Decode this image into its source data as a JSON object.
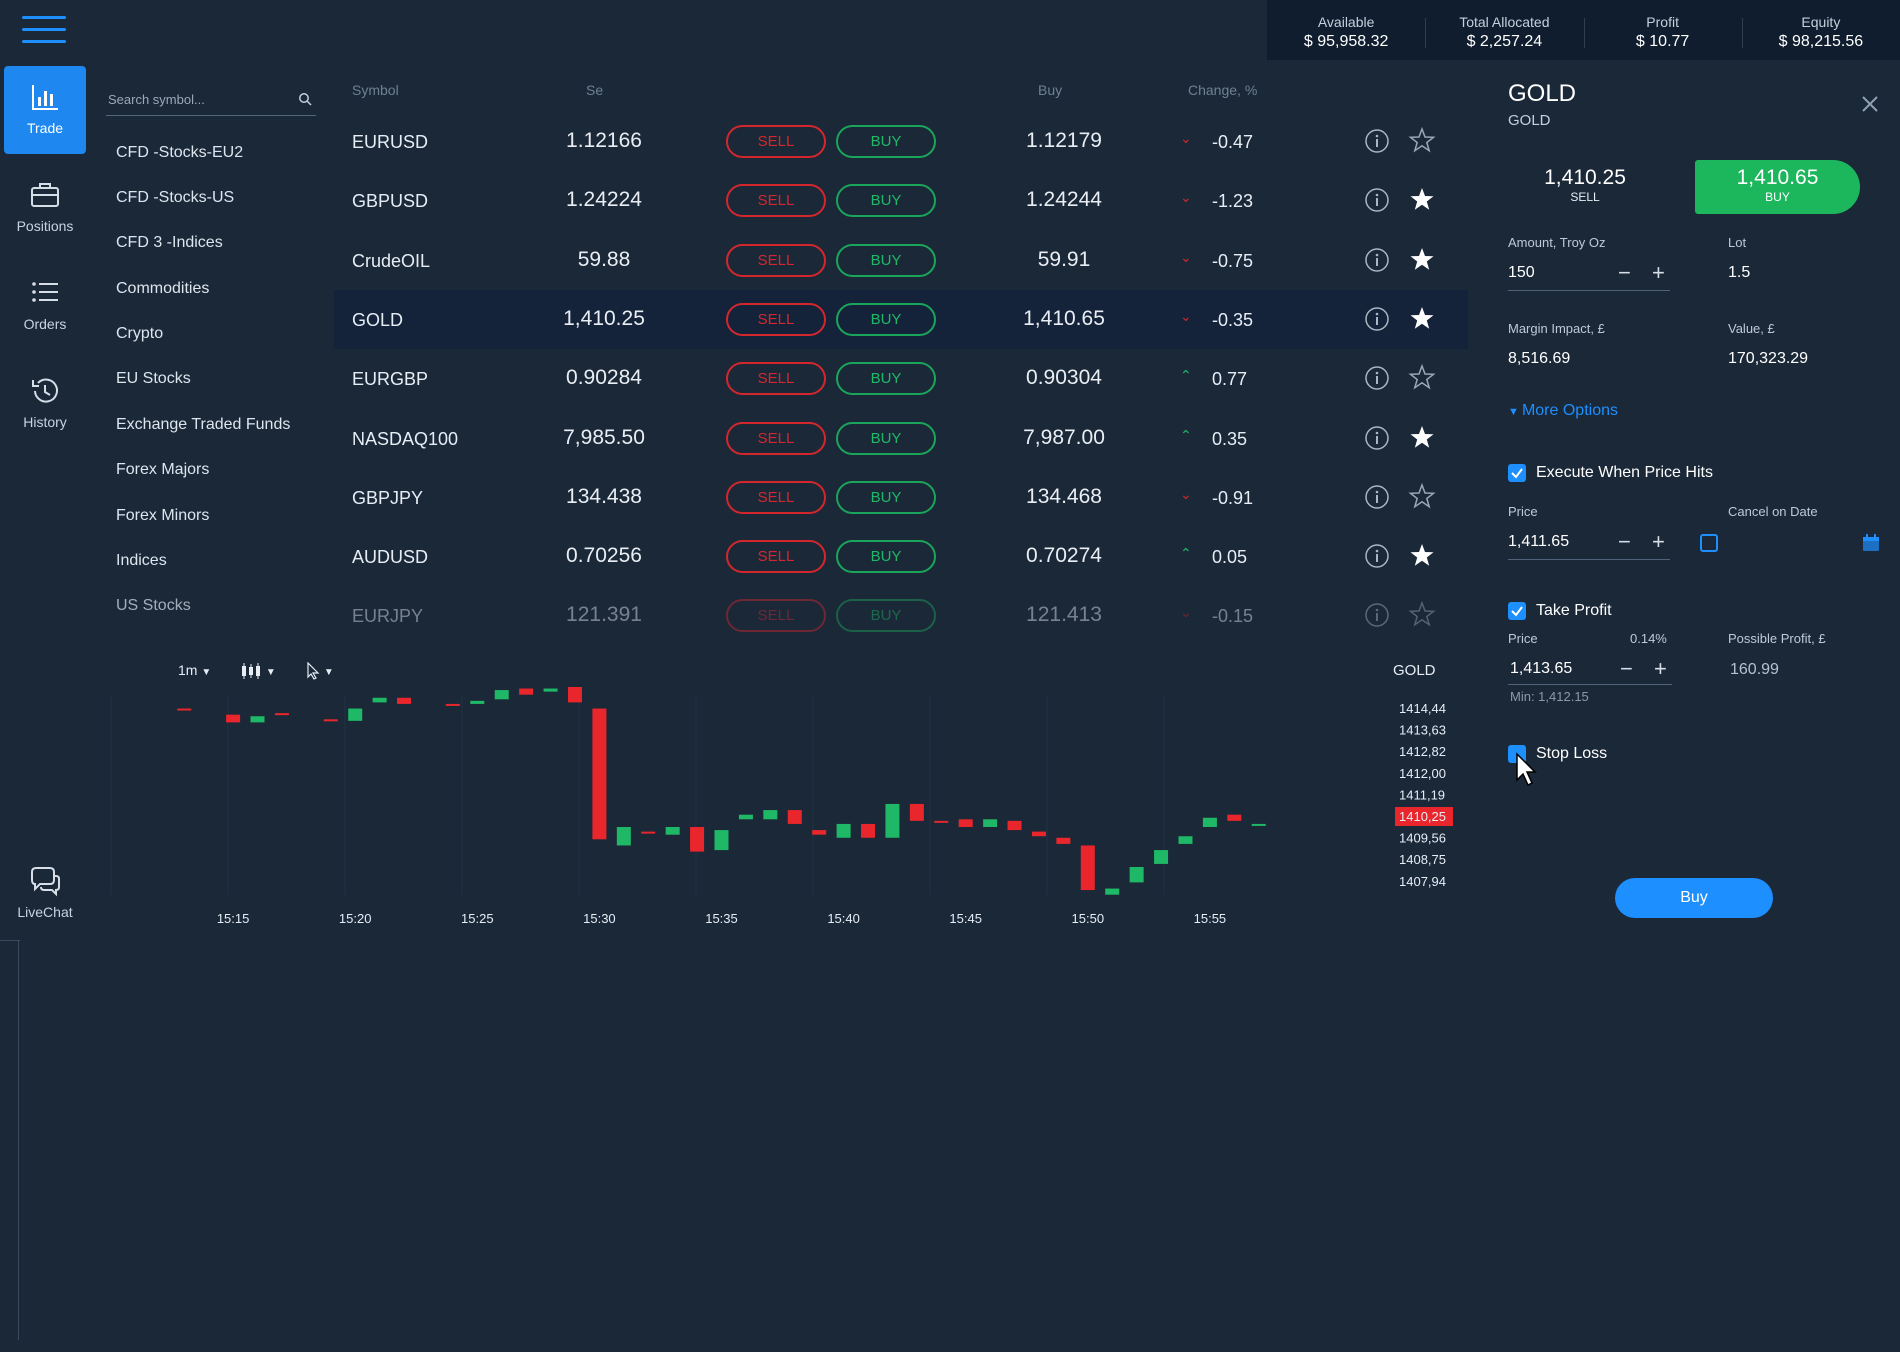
{
  "nav": {
    "items": [
      {
        "label": "Trade",
        "icon": "bar-chart-icon",
        "active": true
      },
      {
        "label": "Positions",
        "icon": "briefcase-icon"
      },
      {
        "label": "Orders",
        "icon": "list-icon"
      },
      {
        "label": "History",
        "icon": "history-icon"
      },
      {
        "label": "LiveChat",
        "icon": "chat-icon"
      }
    ]
  },
  "account": {
    "available_label": "Available",
    "available": "$ 95,958.32",
    "allocated_label": "Total Allocated",
    "allocated": "$ 2,257.24",
    "profit_label": "Profit",
    "profit": "$ 10.77",
    "equity_label": "Equity",
    "equity": "$ 98,215.56"
  },
  "search": {
    "placeholder": "Search symbol..."
  },
  "categories": [
    "CFD -Stocks-EU2",
    "CFD -Stocks-US",
    "CFD 3 -Indices",
    "Commodities",
    "Crypto",
    "EU Stocks",
    "Exchange Traded Funds",
    "Forex Majors",
    "Forex Minors",
    "Indices",
    "US Stocks"
  ],
  "table": {
    "headers": {
      "symbol": "Symbol",
      "sell": "Se",
      "buy": "Buy",
      "change": "Change, %"
    },
    "sell_label": "SELL",
    "buy_label": "BUY",
    "rows": [
      {
        "symbol": "EURUSD",
        "sell": "1.12166",
        "buy": "1.12179",
        "dir": "down",
        "change": "-0.47",
        "fav": false
      },
      {
        "symbol": "GBPUSD",
        "sell": "1.24224",
        "buy": "1.24244",
        "dir": "down",
        "change": "-1.23",
        "fav": true
      },
      {
        "symbol": "CrudeOIL",
        "sell": "59.88",
        "buy": "59.91",
        "dir": "down",
        "change": "-0.75",
        "fav": true
      },
      {
        "symbol": "GOLD",
        "sell": "1,410.25",
        "buy": "1,410.65",
        "dir": "down",
        "change": "-0.35",
        "fav": true,
        "selected": true
      },
      {
        "symbol": "EURGBP",
        "sell": "0.90284",
        "buy": "0.90304",
        "dir": "up",
        "change": "0.77",
        "fav": false
      },
      {
        "symbol": "NASDAQ100",
        "sell": "7,985.50",
        "buy": "7,987.00",
        "dir": "up",
        "change": "0.35",
        "fav": true
      },
      {
        "symbol": "GBPJPY",
        "sell": "134.438",
        "buy": "134.468",
        "dir": "down",
        "change": "-0.91",
        "fav": false
      },
      {
        "symbol": "AUDUSD",
        "sell": "0.70256",
        "buy": "0.70274",
        "dir": "up",
        "change": "0.05",
        "fav": true
      },
      {
        "symbol": "EURJPY",
        "sell": "121.391",
        "buy": "121.413",
        "dir": "down",
        "change": "-0.15",
        "fav": false,
        "faded": true
      }
    ]
  },
  "chart": {
    "timeframe": "1m",
    "symbol": "GOLD",
    "current_price": "1410,25"
  },
  "chart_data": {
    "type": "candlestick",
    "symbol": "GOLD",
    "x_ticks": [
      "15:15",
      "15:20",
      "15:25",
      "15:30",
      "15:35",
      "15:40",
      "15:45",
      "15:50",
      "15:55"
    ],
    "y_ticks": [
      "1414,44",
      "1413,63",
      "1412,82",
      "1412,00",
      "1411,19",
      "1410,25",
      "1409,56",
      "1408,75",
      "1407,94"
    ],
    "ylim": [
      1407.94,
      1414.44
    ],
    "candles": [
      {
        "t": "15:13",
        "o": 1414.0,
        "c": 1413.95
      },
      {
        "t": "15:15",
        "o": 1413.8,
        "c": 1413.55
      },
      {
        "t": "15:16",
        "o": 1413.55,
        "c": 1413.75
      },
      {
        "t": "15:17",
        "o": 1413.85,
        "c": 1413.8
      },
      {
        "t": "15:19",
        "o": 1413.65,
        "c": 1413.6
      },
      {
        "t": "15:20",
        "o": 1413.6,
        "c": 1414.0
      },
      {
        "t": "15:21",
        "o": 1414.2,
        "c": 1414.35
      },
      {
        "t": "15:22",
        "o": 1414.35,
        "c": 1414.15
      },
      {
        "t": "15:24",
        "o": 1414.15,
        "c": 1414.1
      },
      {
        "t": "15:25",
        "o": 1414.15,
        "c": 1414.25
      },
      {
        "t": "15:26",
        "o": 1414.3,
        "c": 1414.6
      },
      {
        "t": "15:27",
        "o": 1414.65,
        "c": 1414.45
      },
      {
        "t": "15:28",
        "o": 1414.55,
        "c": 1414.65
      },
      {
        "t": "15:29",
        "o": 1414.7,
        "c": 1414.2
      },
      {
        "t": "15:30",
        "o": 1414.0,
        "c": 1409.75
      },
      {
        "t": "15:31",
        "o": 1409.55,
        "c": 1410.15
      },
      {
        "t": "15:32",
        "o": 1410.0,
        "c": 1409.95
      },
      {
        "t": "15:33",
        "o": 1409.9,
        "c": 1410.15
      },
      {
        "t": "15:34",
        "o": 1410.15,
        "c": 1409.35
      },
      {
        "t": "15:35",
        "o": 1409.4,
        "c": 1410.05
      },
      {
        "t": "15:36",
        "o": 1410.4,
        "c": 1410.55
      },
      {
        "t": "15:37",
        "o": 1410.4,
        "c": 1410.7
      },
      {
        "t": "15:38",
        "o": 1410.7,
        "c": 1410.25
      },
      {
        "t": "15:39",
        "o": 1410.05,
        "c": 1409.9
      },
      {
        "t": "15:40",
        "o": 1409.8,
        "c": 1410.25
      },
      {
        "t": "15:41",
        "o": 1410.25,
        "c": 1409.8
      },
      {
        "t": "15:42",
        "o": 1409.8,
        "c": 1410.9
      },
      {
        "t": "15:43",
        "o": 1410.9,
        "c": 1410.35
      },
      {
        "t": "15:44",
        "o": 1410.35,
        "c": 1410.3
      },
      {
        "t": "15:45",
        "o": 1410.4,
        "c": 1410.15
      },
      {
        "t": "15:46",
        "o": 1410.15,
        "c": 1410.4
      },
      {
        "t": "15:47",
        "o": 1410.35,
        "c": 1410.05
      },
      {
        "t": "15:48",
        "o": 1410.0,
        "c": 1409.85
      },
      {
        "t": "15:49",
        "o": 1409.8,
        "c": 1409.6
      },
      {
        "t": "15:50",
        "o": 1409.55,
        "c": 1408.1
      },
      {
        "t": "15:51",
        "o": 1407.95,
        "c": 1408.15
      },
      {
        "t": "15:52",
        "o": 1408.35,
        "c": 1408.85
      },
      {
        "t": "15:53",
        "o": 1408.95,
        "c": 1409.4
      },
      {
        "t": "15:54",
        "o": 1409.6,
        "c": 1409.85
      },
      {
        "t": "15:55",
        "o": 1410.15,
        "c": 1410.45
      },
      {
        "t": "15:56",
        "o": 1410.55,
        "c": 1410.35
      },
      {
        "t": "15:57",
        "o": 1410.25,
        "c": 1410.25
      }
    ]
  },
  "order": {
    "title": "GOLD",
    "subtitle": "GOLD",
    "sell_price": "1,410.25",
    "sell_label": "SELL",
    "buy_price": "1,410.65",
    "buy_label": "BUY",
    "amount_label": "Amount, Troy Oz",
    "amount": "150",
    "lot_label": "Lot",
    "lot": "1.5",
    "margin_label": "Margin Impact, £",
    "margin": "8,516.69",
    "value_label": "Value, £",
    "value": "170,323.29",
    "more_options": "More Options",
    "execute_label": "Execute When Price Hits",
    "price_label": "Price",
    "price": "1,411.65",
    "cancel_label": "Cancel on Date",
    "tp_label": "Take Profit",
    "tp_price_label": "Price",
    "tp_percent": "0.14%",
    "tp_price": "1,413.65",
    "tp_min": "Min: 1,412.15",
    "possible_profit_label": "Possible Profit, £",
    "possible_profit": "160.99",
    "sl_label": "Stop Loss",
    "buy_button": "Buy"
  }
}
